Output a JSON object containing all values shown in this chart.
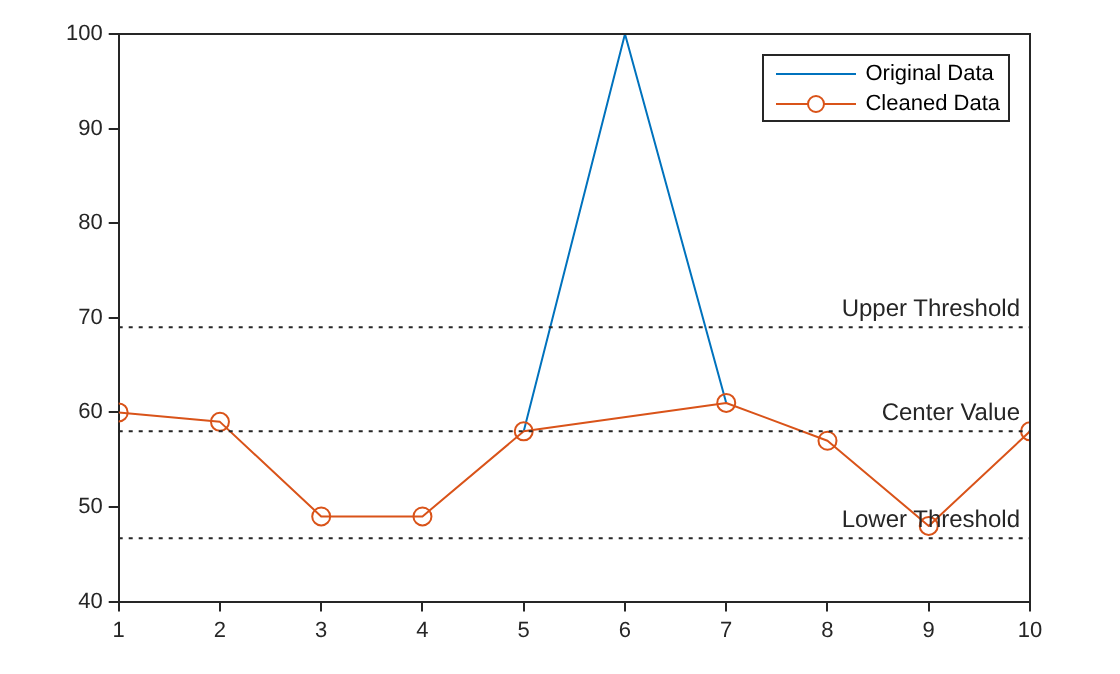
{
  "chart_data": {
    "type": "line",
    "x": [
      1,
      2,
      3,
      4,
      5,
      6,
      7,
      8,
      9,
      10
    ],
    "series": [
      {
        "name": "Original Data",
        "color": "#0072bd",
        "marker": "none",
        "values": [
          null,
          null,
          null,
          null,
          58,
          100,
          61,
          null,
          null,
          null
        ]
      },
      {
        "name": "Cleaned Data",
        "color": "#d95319",
        "marker": "circle",
        "values": [
          60,
          59,
          49,
          49,
          58,
          null,
          61,
          57,
          48,
          58
        ]
      }
    ],
    "xlim": [
      1,
      10
    ],
    "xticks": [
      1,
      2,
      3,
      4,
      5,
      6,
      7,
      8,
      9,
      10
    ],
    "ylim": [
      40,
      100
    ],
    "yticks": [
      40,
      50,
      60,
      70,
      80,
      90,
      100
    ],
    "ref_lines": [
      {
        "axis": "y",
        "value": 69,
        "label": "Upper Threshold",
        "color": "#262626",
        "line_style": "dotted"
      },
      {
        "axis": "y",
        "value": 58,
        "label": "Center Value",
        "color": "#262626",
        "line_style": "dotted"
      },
      {
        "axis": "y",
        "value": 46.7,
        "label": "Lower Threshold",
        "color": "#262626",
        "line_style": "dotted"
      }
    ],
    "grid": false,
    "legend": "top right",
    "line_style": "solid"
  }
}
